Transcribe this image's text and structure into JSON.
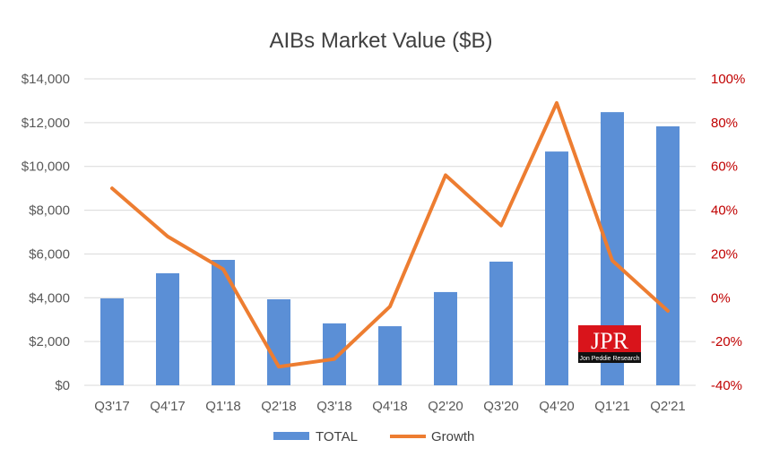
{
  "chart_data": {
    "type": "bar+line",
    "title": "AIBs Market Value ($B)",
    "categories": [
      "Q3'17",
      "Q4'17",
      "Q1'18",
      "Q2'18",
      "Q3'18",
      "Q4'18",
      "Q2'20",
      "Q3'20",
      "Q4'20",
      "Q1'21",
      "Q2'21"
    ],
    "series": [
      {
        "name": "TOTAL",
        "type": "bar",
        "axis": "left",
        "color": "#5b8fd6",
        "values": [
          3970,
          5120,
          5730,
          3930,
          2830,
          2700,
          4260,
          5650,
          10680,
          12480,
          11830
        ]
      },
      {
        "name": "Growth",
        "type": "line",
        "axis": "right",
        "color": "#ed7d31",
        "values": [
          50,
          28,
          13,
          -31.5,
          -28,
          -4,
          56,
          33,
          89,
          17,
          -6
        ]
      }
    ],
    "left_axis": {
      "range": [
        0,
        14000
      ],
      "ticks": [
        "$0",
        "$2,000",
        "$4,000",
        "$6,000",
        "$8,000",
        "$10,000",
        "$12,000",
        "$14,000"
      ],
      "color": "#595959"
    },
    "right_axis": {
      "range": [
        -40,
        100
      ],
      "ticks": [
        "-40%",
        "-20%",
        "0%",
        "20%",
        "40%",
        "60%",
        "80%",
        "100%"
      ],
      "color": "#c00000"
    },
    "grid": true,
    "legend": "bottom"
  },
  "watermark": {
    "main": "JPR",
    "sub": "Jon Peddie Research",
    "bg": "#d9141b"
  }
}
